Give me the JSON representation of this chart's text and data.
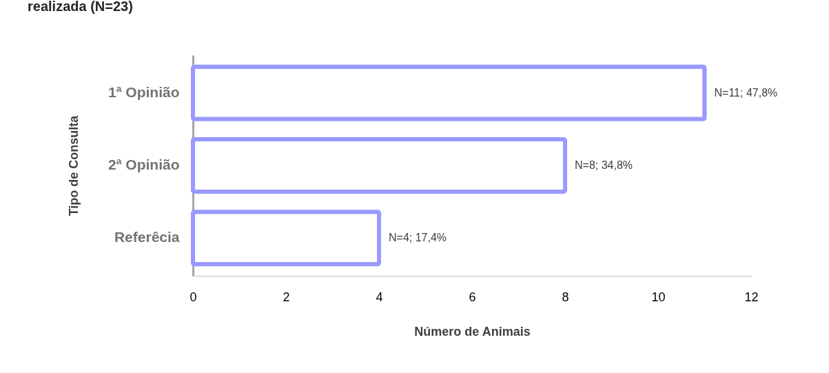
{
  "chart_data": {
    "type": "bar",
    "orientation": "horizontal",
    "title": "realizada (N=23)",
    "xlabel": "Número de Animais",
    "ylabel": "Tipo de Consulta",
    "categories": [
      "1ª Opinião",
      "2ª Opinião",
      "Referêcia"
    ],
    "values": [
      11,
      8,
      4
    ],
    "value_labels": [
      "N=11; 47,8%",
      "N=8; 34,8%",
      "N=4; 17,4%"
    ],
    "color": "#9999ff",
    "xlim": [
      0,
      12
    ],
    "xticks": [
      0,
      2,
      4,
      6,
      8,
      10,
      12
    ],
    "grid": false
  }
}
